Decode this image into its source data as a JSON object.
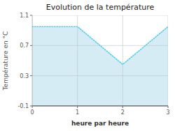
{
  "chart_data": {
    "type": "line",
    "title": "Evolution de la température",
    "x_label": "heure par heure",
    "y_label": "Température en °C",
    "x": [
      0,
      1,
      2,
      3
    ],
    "values": [
      0.95,
      0.95,
      0.45,
      0.95
    ],
    "color": "#55ccee",
    "line_style": "dotted",
    "xlim": [
      0,
      3
    ],
    "ylim": [
      -0.1,
      1.1
    ],
    "xticks": [
      0,
      1,
      2,
      3
    ],
    "yticks": [
      -0.1,
      0.3,
      0.7,
      1.1
    ],
    "grid": true
  }
}
